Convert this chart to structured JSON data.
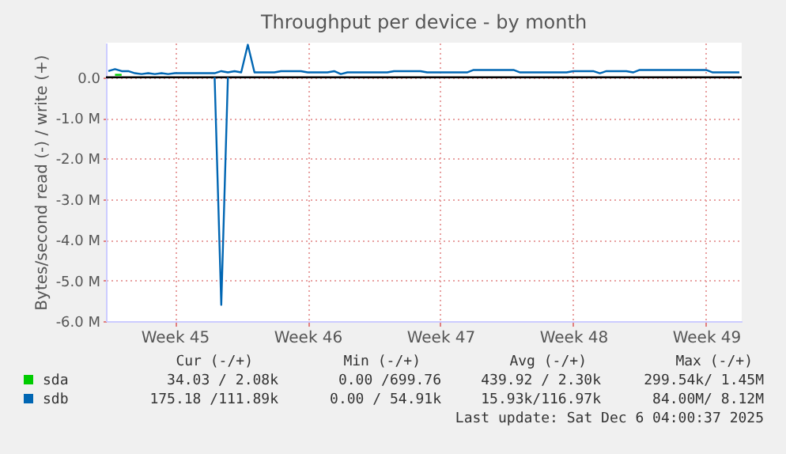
{
  "chart_data": {
    "type": "line",
    "title": "Throughput per device - by month",
    "ylabel": "Bytes/second read (-) / write (+)",
    "categories": [
      null,
      null,
      null,
      null,
      null,
      null,
      null,
      null,
      null,
      null,
      "Week 45",
      null,
      null,
      null,
      null,
      null,
      null,
      null,
      null,
      null,
      null,
      null,
      null,
      null,
      null,
      null,
      null,
      null,
      null,
      null,
      "Week 46",
      null,
      null,
      null,
      null,
      null,
      null,
      null,
      null,
      null,
      null,
      null,
      null,
      null,
      null,
      null,
      null,
      null,
      null,
      null,
      "Week 47",
      null,
      null,
      null,
      null,
      null,
      null,
      null,
      null,
      null,
      null,
      null,
      null,
      null,
      null,
      null,
      null,
      null,
      null,
      null,
      "Week 48",
      null,
      null,
      null,
      null,
      null,
      null,
      null,
      null,
      null,
      null,
      null,
      null,
      null,
      null,
      null,
      null,
      null,
      null,
      null,
      "Week 49",
      null,
      null,
      null,
      null,
      null
    ],
    "ylim": [
      -6000000,
      850000
    ],
    "yticks": [
      {
        "value": -6000000,
        "label": "-6.0 M"
      },
      {
        "value": -5000000,
        "label": "-5.0 M"
      },
      {
        "value": -4000000,
        "label": "-4.0 M"
      },
      {
        "value": -3000000,
        "label": "-3.0 M"
      },
      {
        "value": -2000000,
        "label": "-2.0 M"
      },
      {
        "value": -1000000,
        "label": "-1.0 M"
      },
      {
        "value": 0,
        "label": "0.0"
      }
    ],
    "grid": true,
    "legend": "bottom",
    "ref_lines": [
      {
        "axis": "y",
        "value": 0,
        "color": "#000000"
      }
    ],
    "series": [
      {
        "name": "sda",
        "color": "#00cc00",
        "values": [
          null,
          60000,
          60000,
          null,
          null,
          null,
          null,
          null,
          null,
          null,
          null,
          null,
          null,
          null,
          null,
          null,
          null,
          null,
          null,
          null,
          null,
          null,
          null,
          null,
          null,
          null,
          null,
          null,
          null,
          null,
          null,
          null,
          null,
          null,
          null,
          null,
          null,
          null,
          null,
          null,
          null,
          null,
          null,
          null,
          null,
          null,
          null,
          null,
          null,
          null,
          null,
          null,
          null,
          null,
          null,
          null,
          null,
          null,
          null,
          null,
          null,
          null,
          null,
          null,
          null,
          null,
          null,
          null,
          null,
          null,
          null,
          null,
          null,
          null,
          null,
          null,
          null,
          null,
          null,
          null,
          null,
          null,
          null,
          null,
          null,
          null,
          null,
          null,
          null,
          null,
          null,
          null,
          null,
          null,
          null,
          null
        ]
      },
      {
        "name": "sdb",
        "color": "#0066b3",
        "values": [
          150000,
          200000,
          150000,
          150000,
          100000,
          80000,
          100000,
          80000,
          100000,
          80000,
          100000,
          100000,
          100000,
          100000,
          100000,
          100000,
          100000,
          150000,
          120000,
          150000,
          120000,
          800000,
          120000,
          120000,
          120000,
          120000,
          150000,
          150000,
          150000,
          150000,
          120000,
          120000,
          120000,
          120000,
          150000,
          80000,
          120000,
          120000,
          120000,
          120000,
          120000,
          120000,
          120000,
          150000,
          150000,
          150000,
          150000,
          150000,
          120000,
          120000,
          120000,
          120000,
          120000,
          120000,
          120000,
          180000,
          180000,
          180000,
          180000,
          180000,
          180000,
          180000,
          120000,
          120000,
          120000,
          120000,
          120000,
          120000,
          120000,
          120000,
          150000,
          150000,
          150000,
          150000,
          100000,
          150000,
          150000,
          150000,
          150000,
          120000,
          180000,
          180000,
          180000,
          180000,
          180000,
          180000,
          180000,
          180000,
          180000,
          180000,
          180000,
          120000,
          120000,
          120000,
          120000,
          120000
        ]
      },
      {
        "color": "#0066b3",
        "values": [
          null,
          null,
          null,
          null,
          null,
          null,
          null,
          null,
          null,
          null,
          null,
          null,
          null,
          null,
          null,
          null,
          0,
          -5600000,
          0,
          null,
          null,
          null,
          null,
          null,
          null,
          null,
          null,
          null,
          null,
          null,
          null,
          null,
          null,
          null,
          null,
          null,
          null,
          null,
          null,
          null,
          null,
          null,
          null,
          null,
          null,
          null,
          null,
          null,
          null,
          null,
          null,
          null,
          null,
          null,
          null,
          null,
          null,
          null,
          null,
          null,
          null,
          null,
          null,
          null,
          null,
          null,
          null,
          null,
          null,
          null,
          null,
          null,
          null,
          null,
          null,
          null,
          null,
          null,
          null,
          null,
          null,
          null,
          null,
          null,
          null,
          null,
          null,
          null,
          null,
          null,
          null,
          null,
          null,
          null,
          null,
          null
        ]
      }
    ],
    "annotations": [
      "Cur (-/+)",
      "Min (-/+)",
      "Avg (-/+)",
      "Max (-/+)",
      "34.03 /  2.08k",
      "0.00 /699.76",
      "439.92 /  2.30k",
      "299.54k/  1.45M",
      "175.18 /111.89k",
      "0.00 / 54.91k",
      "15.93k/116.97k",
      "84.00M/  8.12M",
      "Last update: Sat Dec  6 04:00:37 2025"
    ]
  }
}
